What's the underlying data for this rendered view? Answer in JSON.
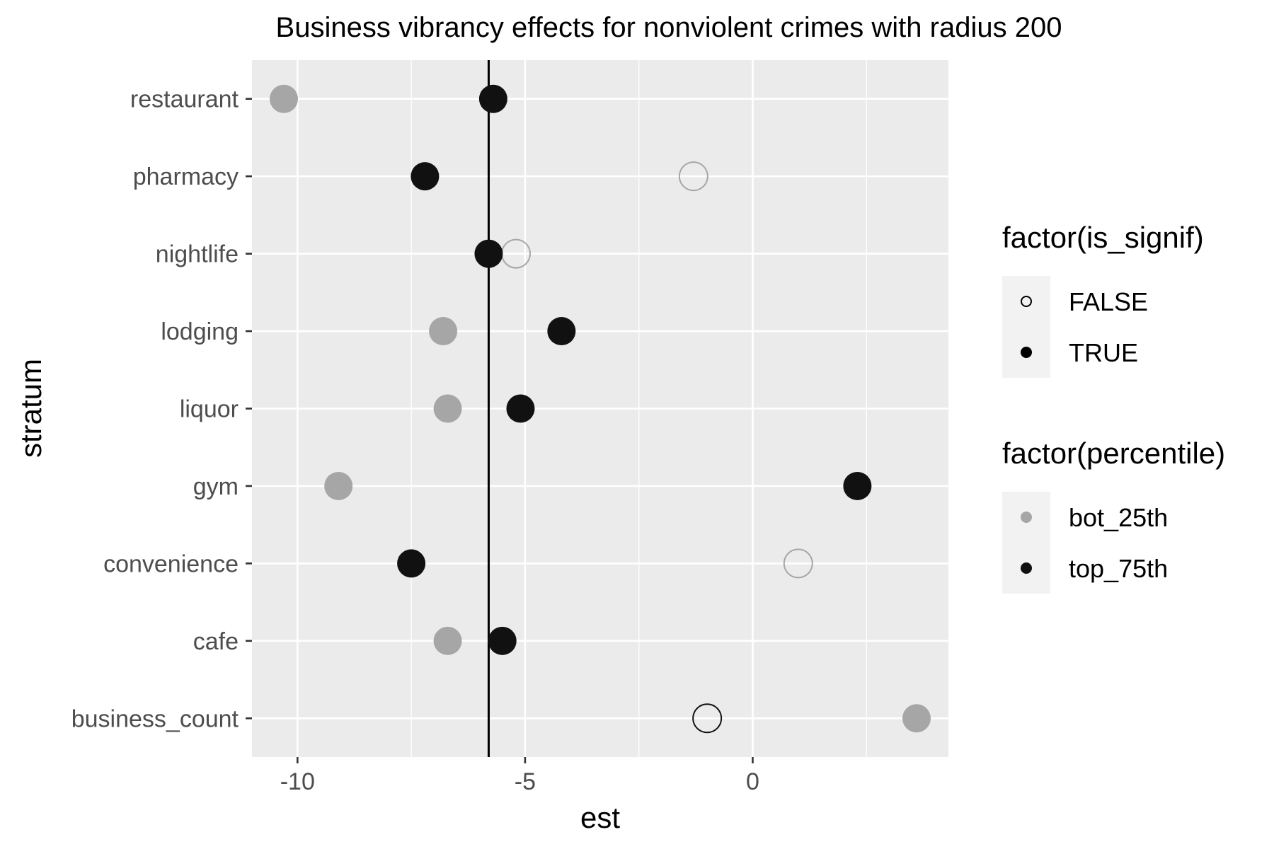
{
  "chart_data": {
    "type": "scatter",
    "title": "Business vibrancy effects for nonviolent crimes with radius 200",
    "xlabel": "est",
    "ylabel": "stratum",
    "xlim": [
      -11.0,
      4.3
    ],
    "x_ticks": [
      -10,
      -5,
      0
    ],
    "x_tick_labels": [
      "-10",
      "-5",
      "0"
    ],
    "categories": [
      "restaurant",
      "pharmacy",
      "nightlife",
      "lodging",
      "liquor",
      "gym",
      "convenience",
      "cafe",
      "business_count"
    ],
    "reference_line_x": -5.8,
    "grid": true,
    "legend_position": "right",
    "series": [
      {
        "name": "bot_25th",
        "color": "#a6a6a6",
        "points": [
          {
            "stratum": "restaurant",
            "est": -10.3,
            "is_signif": true
          },
          {
            "stratum": "pharmacy",
            "est": -1.3,
            "is_signif": false
          },
          {
            "stratum": "nightlife",
            "est": -5.2,
            "is_signif": false
          },
          {
            "stratum": "lodging",
            "est": -6.8,
            "is_signif": true
          },
          {
            "stratum": "liquor",
            "est": -6.7,
            "is_signif": true
          },
          {
            "stratum": "gym",
            "est": -9.1,
            "is_signif": true
          },
          {
            "stratum": "convenience",
            "est": 1.0,
            "is_signif": false
          },
          {
            "stratum": "cafe",
            "est": -6.7,
            "is_signif": true
          },
          {
            "stratum": "business_count",
            "est": 3.6,
            "is_signif": true
          }
        ]
      },
      {
        "name": "top_75th",
        "color": "#111111",
        "points": [
          {
            "stratum": "restaurant",
            "est": -5.7,
            "is_signif": true
          },
          {
            "stratum": "pharmacy",
            "est": -7.2,
            "is_signif": true
          },
          {
            "stratum": "nightlife",
            "est": -5.8,
            "is_signif": true
          },
          {
            "stratum": "lodging",
            "est": -4.2,
            "is_signif": true
          },
          {
            "stratum": "liquor",
            "est": -5.1,
            "is_signif": true
          },
          {
            "stratum": "gym",
            "est": 2.3,
            "is_signif": true
          },
          {
            "stratum": "convenience",
            "est": -7.5,
            "is_signif": true
          },
          {
            "stratum": "cafe",
            "est": -5.5,
            "is_signif": true
          },
          {
            "stratum": "business_count",
            "est": -1.0,
            "is_signif": false
          }
        ]
      }
    ],
    "legends": [
      {
        "title": "factor(is_signif)",
        "items": [
          {
            "label": "FALSE",
            "shape": "hollow"
          },
          {
            "label": "TRUE",
            "shape": "filled"
          }
        ]
      },
      {
        "title": "factor(percentile)",
        "items": [
          {
            "label": "bot_25th",
            "color": "#a6a6a6"
          },
          {
            "label": "top_75th",
            "color": "#111111"
          }
        ]
      }
    ]
  }
}
